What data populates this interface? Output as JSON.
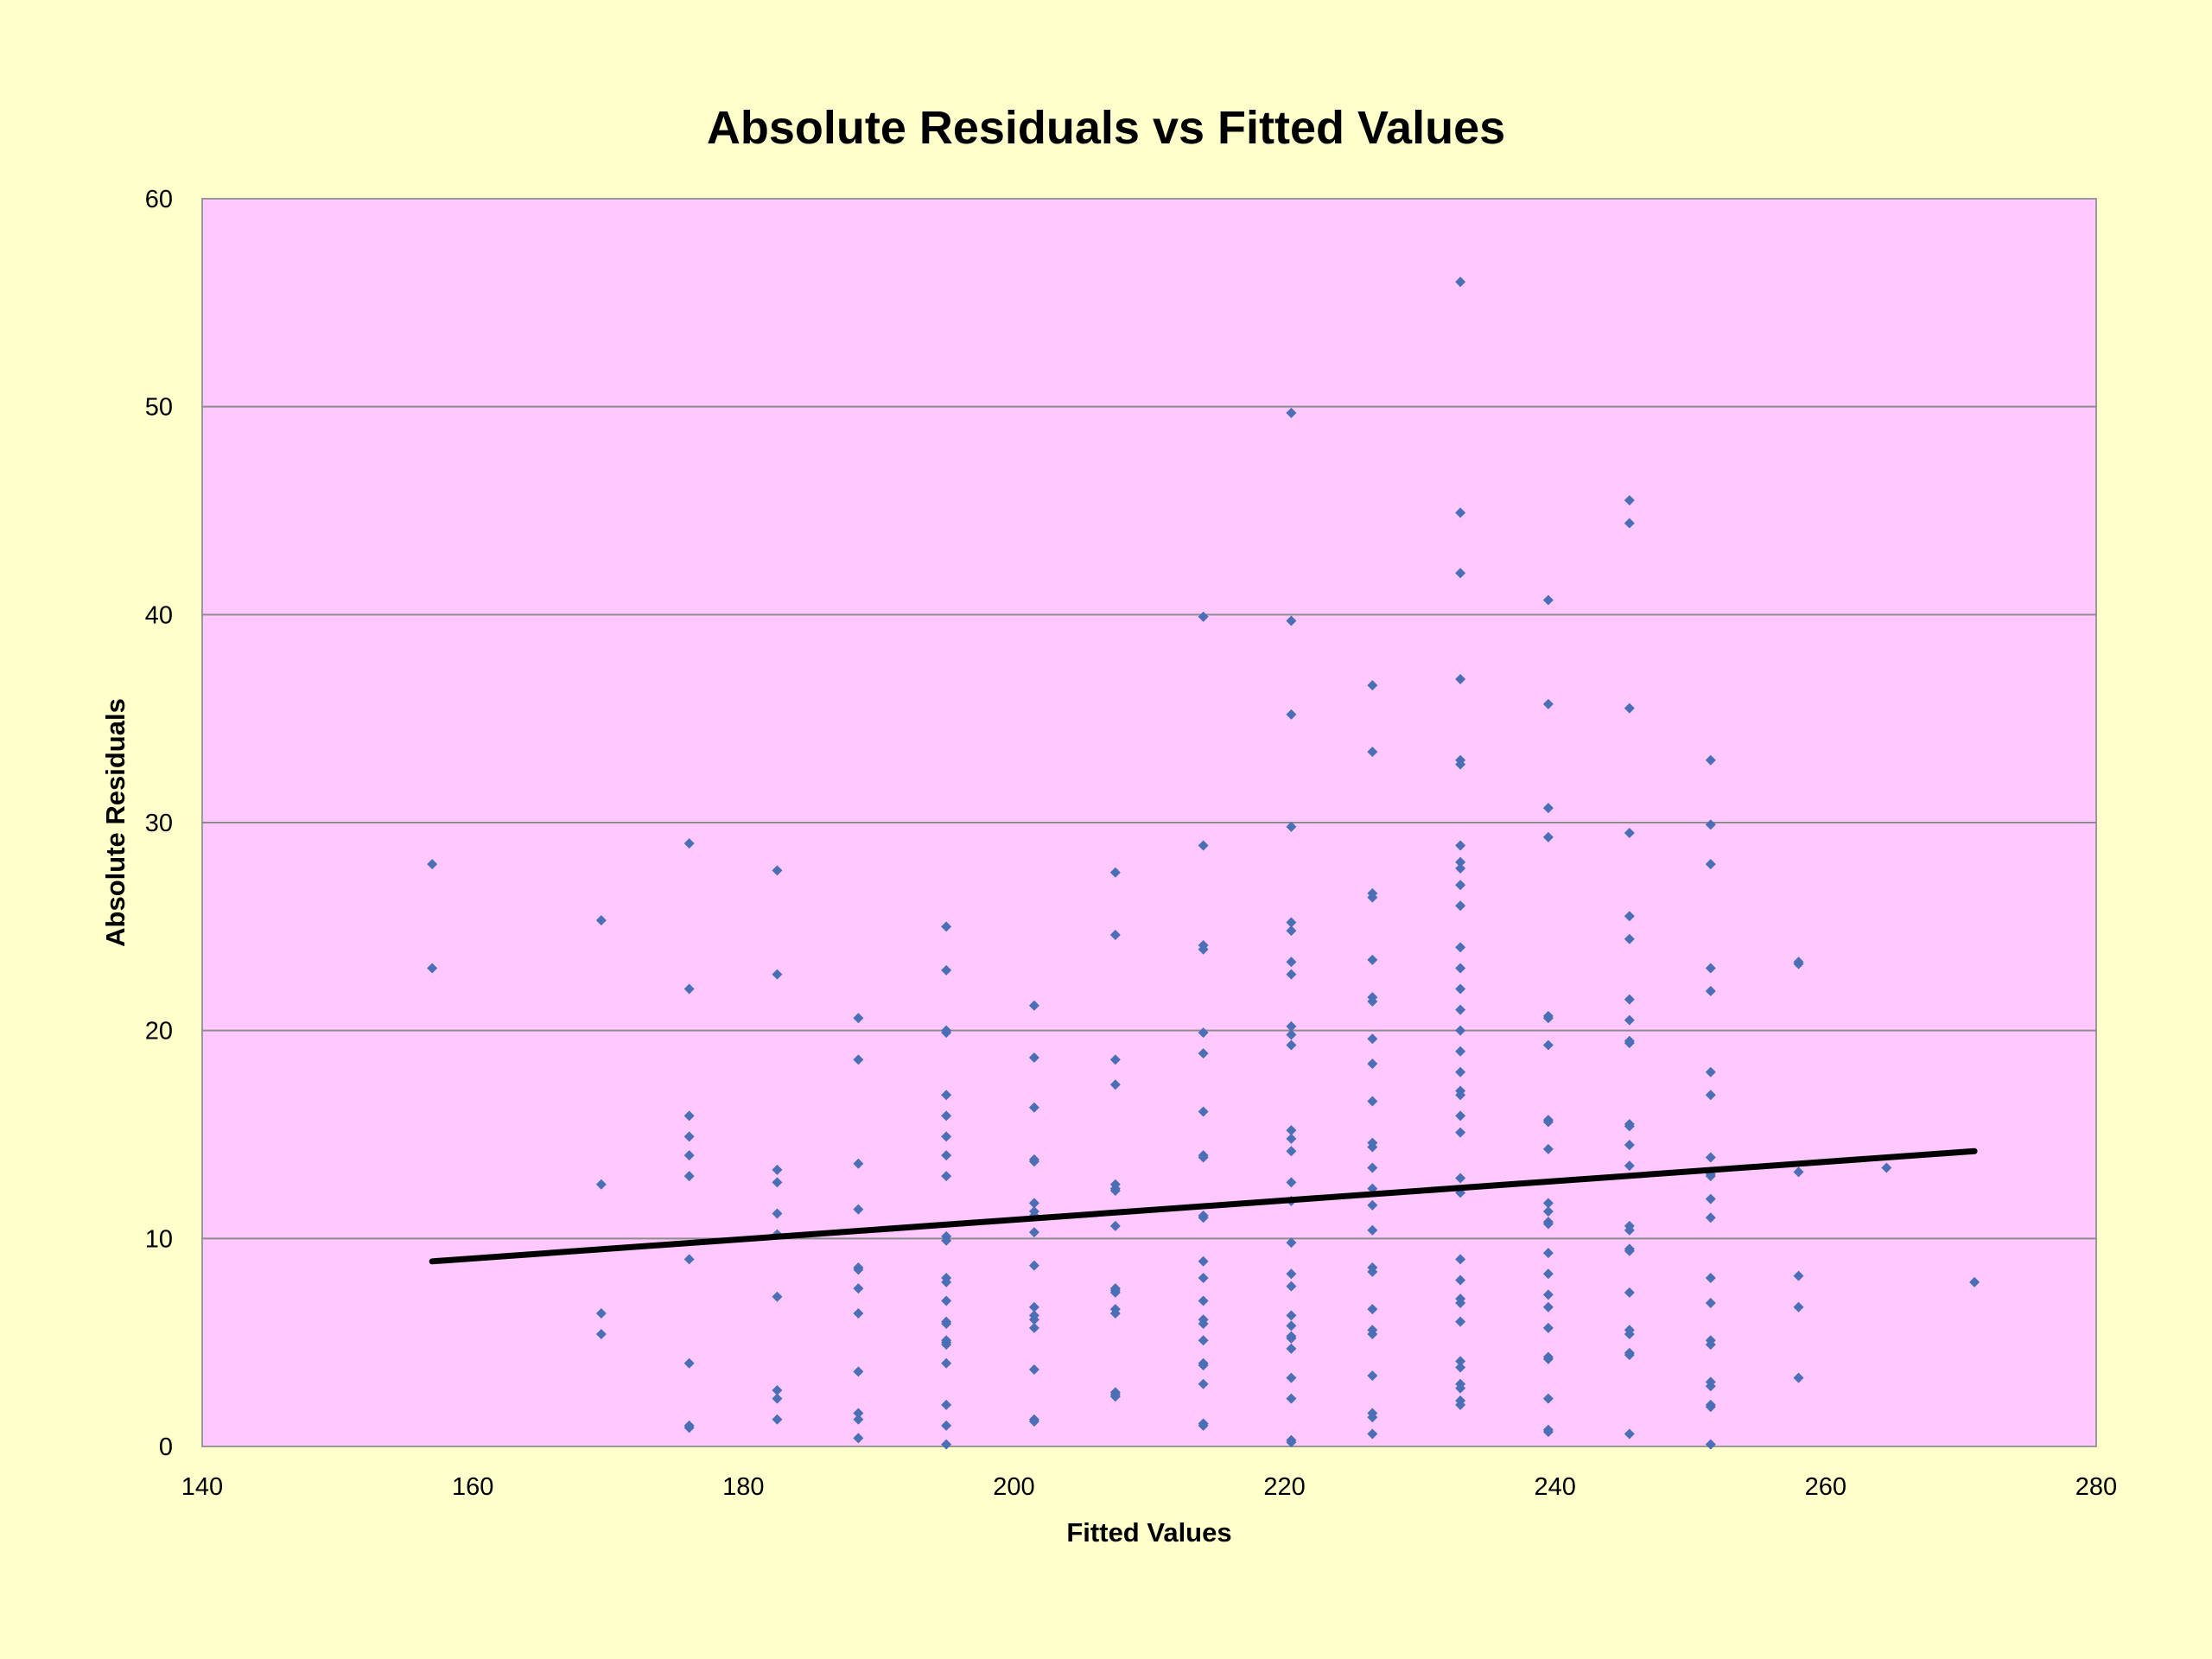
{
  "chart_data": {
    "type": "scatter",
    "title": "Absolute Residuals vs Fitted Values",
    "xlabel": "Fitted Values",
    "ylabel": "Absolute Residuals",
    "xlim": [
      140,
      280
    ],
    "ylim": [
      0,
      60
    ],
    "x_ticks": [
      "140",
      "160",
      "180",
      "200",
      "220",
      "240",
      "260",
      "280"
    ],
    "y_ticks": [
      "0",
      "10",
      "20",
      "30",
      "40",
      "50",
      "60"
    ],
    "grid": "horizontal",
    "legend": "none",
    "series": [
      {
        "type": "scatter",
        "color": "#4A6FB5",
        "points": [
          [
            157,
            28.0
          ],
          [
            157,
            23.0
          ],
          [
            169.5,
            25.3
          ],
          [
            169.5,
            12.6
          ],
          [
            169.5,
            6.4
          ],
          [
            169.5,
            5.4
          ],
          [
            176,
            29.0
          ],
          [
            176,
            22.0
          ],
          [
            176,
            15.9
          ],
          [
            176,
            14.9
          ],
          [
            176,
            14.0
          ],
          [
            176,
            13.0
          ],
          [
            176,
            9.0
          ],
          [
            176,
            4.0
          ],
          [
            176,
            1.0
          ],
          [
            176,
            0.9
          ],
          [
            182.5,
            27.7
          ],
          [
            182.5,
            22.7
          ],
          [
            182.5,
            13.3
          ],
          [
            182.5,
            12.7
          ],
          [
            182.5,
            11.2
          ],
          [
            182.5,
            10.2
          ],
          [
            182.5,
            7.2
          ],
          [
            182.5,
            2.7
          ],
          [
            182.5,
            2.3
          ],
          [
            182.5,
            1.3
          ],
          [
            188.5,
            20.6
          ],
          [
            188.5,
            18.6
          ],
          [
            188.5,
            13.6
          ],
          [
            188.5,
            11.4
          ],
          [
            188.5,
            8.6
          ],
          [
            188.5,
            8.5
          ],
          [
            188.5,
            7.6
          ],
          [
            188.5,
            6.4
          ],
          [
            188.5,
            3.6
          ],
          [
            188.5,
            1.6
          ],
          [
            188.5,
            1.3
          ],
          [
            188.5,
            0.4
          ],
          [
            195,
            25.0
          ],
          [
            195,
            22.9
          ],
          [
            195,
            20.0
          ],
          [
            195,
            19.9
          ],
          [
            195,
            16.9
          ],
          [
            195,
            15.9
          ],
          [
            195,
            14.9
          ],
          [
            195,
            14.0
          ],
          [
            195,
            13.0
          ],
          [
            195,
            10.1
          ],
          [
            195,
            9.9
          ],
          [
            195,
            8.1
          ],
          [
            195,
            7.9
          ],
          [
            195,
            7.0
          ],
          [
            195,
            6.0
          ],
          [
            195,
            5.9
          ],
          [
            195,
            5.1
          ],
          [
            195,
            5.0
          ],
          [
            195,
            4.9
          ],
          [
            195,
            4.0
          ],
          [
            195,
            2.0
          ],
          [
            195,
            1.0
          ],
          [
            195,
            0.1
          ],
          [
            201.5,
            21.2
          ],
          [
            201.5,
            18.7
          ],
          [
            201.5,
            16.3
          ],
          [
            201.5,
            13.8
          ],
          [
            201.5,
            13.7
          ],
          [
            201.5,
            11.7
          ],
          [
            201.5,
            11.3
          ],
          [
            201.5,
            11.1
          ],
          [
            201.5,
            10.3
          ],
          [
            201.5,
            8.7
          ],
          [
            201.5,
            6.7
          ],
          [
            201.5,
            6.3
          ],
          [
            201.5,
            6.1
          ],
          [
            201.5,
            5.7
          ],
          [
            201.5,
            3.7
          ],
          [
            201.5,
            1.3
          ],
          [
            201.5,
            1.2
          ],
          [
            207.5,
            27.6
          ],
          [
            207.5,
            24.6
          ],
          [
            207.5,
            18.6
          ],
          [
            207.5,
            17.4
          ],
          [
            207.5,
            12.6
          ],
          [
            207.5,
            12.4
          ],
          [
            207.5,
            12.3
          ],
          [
            207.5,
            10.6
          ],
          [
            207.5,
            7.6
          ],
          [
            207.5,
            7.5
          ],
          [
            207.5,
            7.4
          ],
          [
            207.5,
            6.6
          ],
          [
            207.5,
            6.4
          ],
          [
            207.5,
            2.6
          ],
          [
            207.5,
            2.5
          ],
          [
            207.5,
            2.4
          ],
          [
            214,
            39.9
          ],
          [
            214,
            28.9
          ],
          [
            214,
            24.1
          ],
          [
            214,
            23.9
          ],
          [
            214,
            19.9
          ],
          [
            214,
            18.9
          ],
          [
            214,
            16.1
          ],
          [
            214,
            14.0
          ],
          [
            214,
            13.9
          ],
          [
            214,
            11.1
          ],
          [
            214,
            11.0
          ],
          [
            214,
            8.9
          ],
          [
            214,
            8.1
          ],
          [
            214,
            7.0
          ],
          [
            214,
            6.1
          ],
          [
            214,
            5.9
          ],
          [
            214,
            5.1
          ],
          [
            214,
            4.0
          ],
          [
            214,
            3.9
          ],
          [
            214,
            3.0
          ],
          [
            214,
            1.1
          ],
          [
            214,
            1.0
          ],
          [
            220.5,
            49.7
          ],
          [
            220.5,
            39.7
          ],
          [
            220.5,
            35.2
          ],
          [
            220.5,
            29.8
          ],
          [
            220.5,
            25.2
          ],
          [
            220.5,
            24.8
          ],
          [
            220.5,
            23.3
          ],
          [
            220.5,
            22.7
          ],
          [
            220.5,
            20.2
          ],
          [
            220.5,
            19.8
          ],
          [
            220.5,
            19.3
          ],
          [
            220.5,
            15.2
          ],
          [
            220.5,
            14.8
          ],
          [
            220.5,
            14.2
          ],
          [
            220.5,
            12.7
          ],
          [
            220.5,
            11.8
          ],
          [
            220.5,
            9.8
          ],
          [
            220.5,
            8.3
          ],
          [
            220.5,
            7.7
          ],
          [
            220.5,
            6.3
          ],
          [
            220.5,
            5.8
          ],
          [
            220.5,
            5.3
          ],
          [
            220.5,
            5.2
          ],
          [
            220.5,
            4.7
          ],
          [
            220.5,
            3.3
          ],
          [
            220.5,
            2.3
          ],
          [
            220.5,
            0.3
          ],
          [
            220.5,
            0.2
          ],
          [
            226.5,
            36.6
          ],
          [
            226.5,
            33.4
          ],
          [
            226.5,
            26.6
          ],
          [
            226.5,
            26.4
          ],
          [
            226.5,
            23.4
          ],
          [
            226.5,
            21.6
          ],
          [
            226.5,
            21.4
          ],
          [
            226.5,
            19.6
          ],
          [
            226.5,
            18.4
          ],
          [
            226.5,
            16.6
          ],
          [
            226.5,
            14.6
          ],
          [
            226.5,
            14.4
          ],
          [
            226.5,
            13.4
          ],
          [
            226.5,
            12.4
          ],
          [
            226.5,
            11.6
          ],
          [
            226.5,
            10.4
          ],
          [
            226.5,
            8.6
          ],
          [
            226.5,
            8.4
          ],
          [
            226.5,
            6.6
          ],
          [
            226.5,
            5.6
          ],
          [
            226.5,
            5.4
          ],
          [
            226.5,
            3.4
          ],
          [
            226.5,
            1.6
          ],
          [
            226.5,
            1.4
          ],
          [
            226.5,
            0.6
          ],
          [
            233,
            56.0
          ],
          [
            233,
            44.9
          ],
          [
            233,
            42.0
          ],
          [
            233,
            36.9
          ],
          [
            233,
            33.0
          ],
          [
            233,
            32.8
          ],
          [
            233,
            28.9
          ],
          [
            233,
            28.1
          ],
          [
            233,
            27.8
          ],
          [
            233,
            27.0
          ],
          [
            233,
            26.0
          ],
          [
            233,
            24.0
          ],
          [
            233,
            23.0
          ],
          [
            233,
            22.0
          ],
          [
            233,
            21.0
          ],
          [
            233,
            20.0
          ],
          [
            233,
            19.0
          ],
          [
            233,
            18.0
          ],
          [
            233,
            17.1
          ],
          [
            233,
            16.9
          ],
          [
            233,
            15.9
          ],
          [
            233,
            15.1
          ],
          [
            233,
            12.9
          ],
          [
            233,
            12.2
          ],
          [
            233,
            9.0
          ],
          [
            233,
            8.0
          ],
          [
            233,
            7.1
          ],
          [
            233,
            6.9
          ],
          [
            233,
            6.0
          ],
          [
            233,
            4.1
          ],
          [
            233,
            3.8
          ],
          [
            233,
            3.0
          ],
          [
            233,
            2.8
          ],
          [
            233,
            2.2
          ],
          [
            233,
            2.0
          ],
          [
            239.5,
            40.7
          ],
          [
            239.5,
            35.7
          ],
          [
            239.5,
            30.7
          ],
          [
            239.5,
            29.3
          ],
          [
            239.5,
            20.7
          ],
          [
            239.5,
            20.6
          ],
          [
            239.5,
            19.3
          ],
          [
            239.5,
            15.7
          ],
          [
            239.5,
            15.6
          ],
          [
            239.5,
            14.3
          ],
          [
            239.5,
            11.7
          ],
          [
            239.5,
            11.3
          ],
          [
            239.5,
            10.8
          ],
          [
            239.5,
            10.7
          ],
          [
            239.5,
            9.3
          ],
          [
            239.5,
            8.3
          ],
          [
            239.5,
            7.3
          ],
          [
            239.5,
            6.7
          ],
          [
            239.5,
            5.7
          ],
          [
            239.5,
            4.3
          ],
          [
            239.5,
            4.2
          ],
          [
            239.5,
            2.3
          ],
          [
            239.5,
            0.8
          ],
          [
            239.5,
            0.7
          ],
          [
            245.5,
            45.5
          ],
          [
            245.5,
            44.4
          ],
          [
            245.5,
            35.5
          ],
          [
            245.5,
            29.5
          ],
          [
            245.5,
            25.5
          ],
          [
            245.5,
            24.4
          ],
          [
            245.5,
            21.5
          ],
          [
            245.5,
            20.5
          ],
          [
            245.5,
            19.5
          ],
          [
            245.5,
            19.4
          ],
          [
            245.5,
            15.5
          ],
          [
            245.5,
            15.4
          ],
          [
            245.5,
            14.5
          ],
          [
            245.5,
            13.5
          ],
          [
            245.5,
            10.6
          ],
          [
            245.5,
            10.4
          ],
          [
            245.5,
            9.5
          ],
          [
            245.5,
            9.4
          ],
          [
            245.5,
            7.4
          ],
          [
            245.5,
            5.6
          ],
          [
            245.5,
            5.4
          ],
          [
            245.5,
            4.5
          ],
          [
            245.5,
            4.4
          ],
          [
            245.5,
            0.6
          ],
          [
            251.5,
            33.0
          ],
          [
            251.5,
            29.9
          ],
          [
            251.5,
            28.0
          ],
          [
            251.5,
            23.0
          ],
          [
            251.5,
            21.9
          ],
          [
            251.5,
            18.0
          ],
          [
            251.5,
            16.9
          ],
          [
            251.5,
            13.9
          ],
          [
            251.5,
            13.1
          ],
          [
            251.5,
            13.0
          ],
          [
            251.5,
            11.9
          ],
          [
            251.5,
            11.0
          ],
          [
            251.5,
            8.1
          ],
          [
            251.5,
            6.9
          ],
          [
            251.5,
            5.1
          ],
          [
            251.5,
            4.9
          ],
          [
            251.5,
            3.1
          ],
          [
            251.5,
            2.9
          ],
          [
            251.5,
            2.0
          ],
          [
            251.5,
            1.9
          ],
          [
            251.5,
            0.1
          ],
          [
            258,
            23.3
          ],
          [
            258,
            23.2
          ],
          [
            258,
            13.2
          ],
          [
            258,
            8.2
          ],
          [
            258,
            6.7
          ],
          [
            258,
            3.3
          ],
          [
            264.5,
            13.4
          ],
          [
            271,
            7.9
          ]
        ]
      },
      {
        "type": "line",
        "color": "#000000",
        "points": [
          [
            157,
            8.9
          ],
          [
            271,
            14.2
          ]
        ]
      }
    ]
  }
}
